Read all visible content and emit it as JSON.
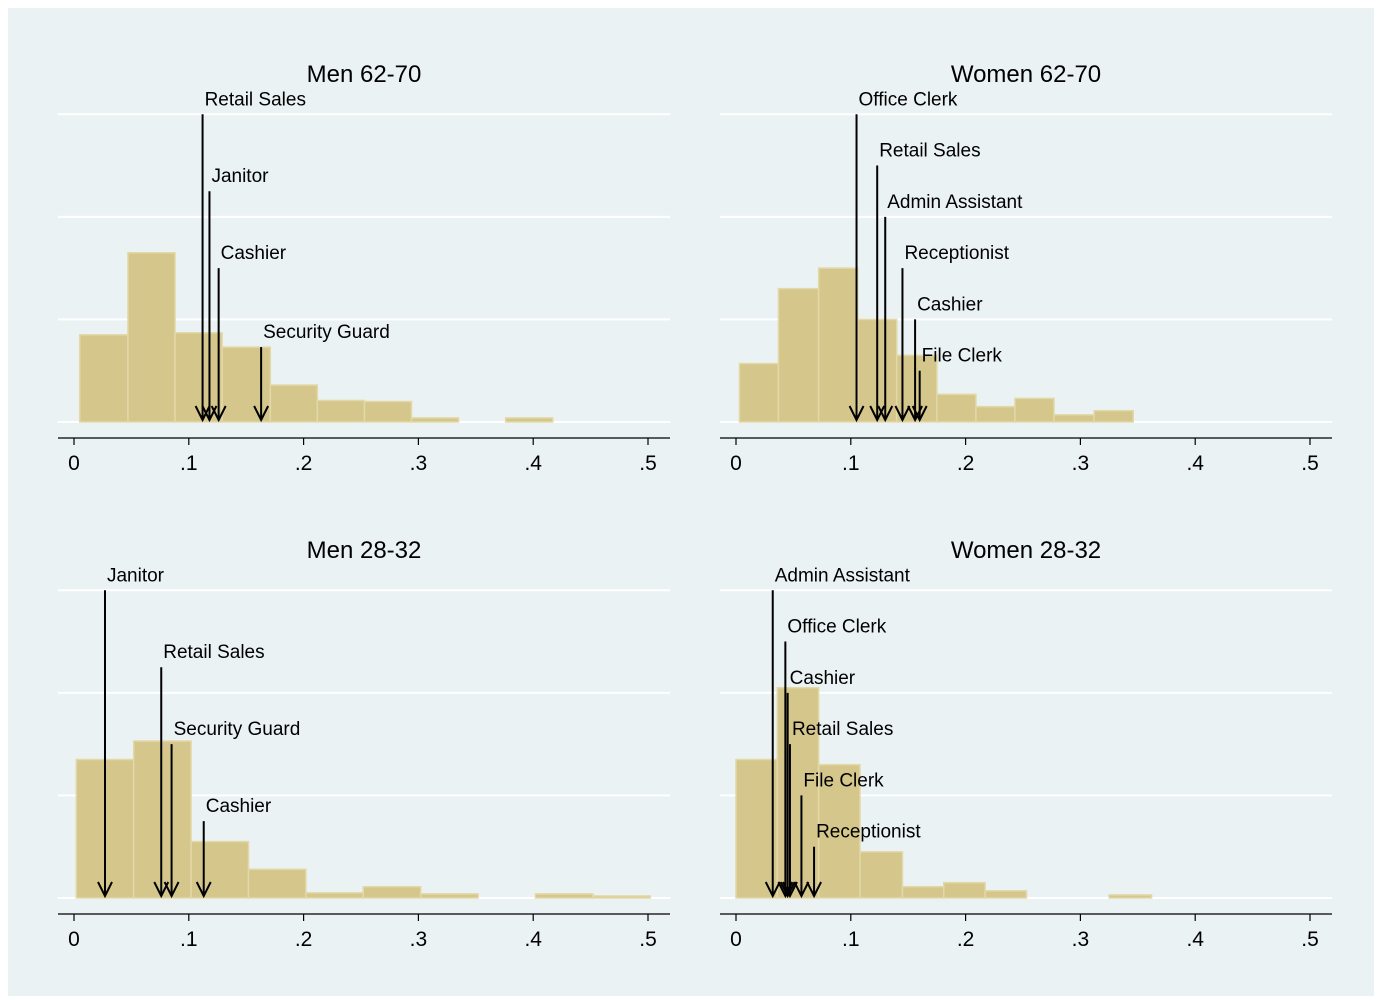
{
  "chart_data": [
    {
      "type": "bar",
      "title": "Men 62-70",
      "xlim": [
        0,
        0.5
      ],
      "ylim": [
        0,
        0.31
      ],
      "xticks": [
        {
          "value": 0,
          "label": "0"
        },
        {
          "value": 0.1,
          "label": ".1"
        },
        {
          "value": 0.2,
          "label": ".2"
        },
        {
          "value": 0.3,
          "label": ".3"
        },
        {
          "value": 0.4,
          "label": ".4"
        },
        {
          "value": 0.5,
          "label": ".5"
        }
      ],
      "grid_y": [
        0,
        0.1,
        0.2,
        0.3
      ],
      "bins": [
        {
          "x0": 0.005,
          "x1": 0.047,
          "value": 0.085
        },
        {
          "x0": 0.047,
          "x1": 0.088,
          "value": 0.165
        },
        {
          "x0": 0.088,
          "x1": 0.129,
          "value": 0.087
        },
        {
          "x0": 0.129,
          "x1": 0.171,
          "value": 0.073
        },
        {
          "x0": 0.171,
          "x1": 0.212,
          "value": 0.036
        },
        {
          "x0": 0.212,
          "x1": 0.253,
          "value": 0.021
        },
        {
          "x0": 0.253,
          "x1": 0.294,
          "value": 0.02
        },
        {
          "x0": 0.294,
          "x1": 0.335,
          "value": 0.004
        },
        {
          "x0": 0.376,
          "x1": 0.417,
          "value": 0.004
        }
      ],
      "annotations": [
        {
          "label": "Retail Sales",
          "x": 0.112,
          "label_y": 0.3
        },
        {
          "label": "Janitor",
          "x": 0.118,
          "label_y": 0.225
        },
        {
          "label": "Cashier",
          "x": 0.126,
          "label_y": 0.15
        },
        {
          "label": "Security Guard",
          "x": 0.163,
          "label_y": 0.073
        }
      ]
    },
    {
      "type": "bar",
      "title": "Women 62-70",
      "xlim": [
        0,
        0.5
      ],
      "ylim": [
        0,
        0.31
      ],
      "xticks": [
        {
          "value": 0,
          "label": "0"
        },
        {
          "value": 0.1,
          "label": ".1"
        },
        {
          "value": 0.2,
          "label": ".2"
        },
        {
          "value": 0.3,
          "label": ".3"
        },
        {
          "value": 0.4,
          "label": ".4"
        },
        {
          "value": 0.5,
          "label": ".5"
        }
      ],
      "grid_y": [
        0,
        0.1,
        0.2,
        0.3
      ],
      "bins": [
        {
          "x0": 0.003,
          "x1": 0.037,
          "value": 0.057
        },
        {
          "x0": 0.037,
          "x1": 0.072,
          "value": 0.13
        },
        {
          "x0": 0.072,
          "x1": 0.106,
          "value": 0.15
        },
        {
          "x0": 0.106,
          "x1": 0.14,
          "value": 0.1
        },
        {
          "x0": 0.14,
          "x1": 0.175,
          "value": 0.065
        },
        {
          "x0": 0.175,
          "x1": 0.209,
          "value": 0.027
        },
        {
          "x0": 0.209,
          "x1": 0.243,
          "value": 0.015
        },
        {
          "x0": 0.243,
          "x1": 0.277,
          "value": 0.023
        },
        {
          "x0": 0.277,
          "x1": 0.312,
          "value": 0.007
        },
        {
          "x0": 0.312,
          "x1": 0.346,
          "value": 0.011
        }
      ],
      "annotations": [
        {
          "label": "Office Clerk",
          "x": 0.105,
          "label_y": 0.3
        },
        {
          "label": "Retail Sales",
          "x": 0.123,
          "label_y": 0.25
        },
        {
          "label": "Admin Assistant",
          "x": 0.13,
          "label_y": 0.2
        },
        {
          "label": "Receptionist",
          "x": 0.145,
          "label_y": 0.15
        },
        {
          "label": "Cashier",
          "x": 0.156,
          "label_y": 0.1
        },
        {
          "label": "File Clerk",
          "x": 0.16,
          "label_y": 0.05
        }
      ]
    },
    {
      "type": "bar",
      "title": "Men 28-32",
      "xlim": [
        0,
        0.5
      ],
      "ylim": [
        0,
        0.31
      ],
      "xticks": [
        {
          "value": 0,
          "label": "0"
        },
        {
          "value": 0.1,
          "label": ".1"
        },
        {
          "value": 0.2,
          "label": ".2"
        },
        {
          "value": 0.3,
          "label": ".3"
        },
        {
          "value": 0.4,
          "label": ".4"
        },
        {
          "value": 0.5,
          "label": ".5"
        }
      ],
      "grid_y": [
        0,
        0.1,
        0.2,
        0.3
      ],
      "bins": [
        {
          "x0": 0.002,
          "x1": 0.052,
          "value": 0.135
        },
        {
          "x0": 0.052,
          "x1": 0.102,
          "value": 0.153
        },
        {
          "x0": 0.102,
          "x1": 0.152,
          "value": 0.055
        },
        {
          "x0": 0.152,
          "x1": 0.202,
          "value": 0.028
        },
        {
          "x0": 0.202,
          "x1": 0.252,
          "value": 0.005
        },
        {
          "x0": 0.252,
          "x1": 0.302,
          "value": 0.011
        },
        {
          "x0": 0.302,
          "x1": 0.352,
          "value": 0.004
        },
        {
          "x0": 0.402,
          "x1": 0.452,
          "value": 0.004
        },
        {
          "x0": 0.452,
          "x1": 0.502,
          "value": 0.002
        }
      ],
      "annotations": [
        {
          "label": "Janitor",
          "x": 0.027,
          "label_y": 0.3
        },
        {
          "label": "Retail Sales",
          "x": 0.076,
          "label_y": 0.225
        },
        {
          "label": "Security Guard",
          "x": 0.085,
          "label_y": 0.15
        },
        {
          "label": "Cashier",
          "x": 0.113,
          "label_y": 0.075
        }
      ]
    },
    {
      "type": "bar",
      "title": "Women 28-32",
      "xlim": [
        0,
        0.5
      ],
      "ylim": [
        0,
        0.31
      ],
      "xticks": [
        {
          "value": 0,
          "label": "0"
        },
        {
          "value": 0.1,
          "label": ".1"
        },
        {
          "value": 0.2,
          "label": ".2"
        },
        {
          "value": 0.3,
          "label": ".3"
        },
        {
          "value": 0.4,
          "label": ".4"
        },
        {
          "value": 0.5,
          "label": ".5"
        }
      ],
      "grid_y": [
        0,
        0.1,
        0.2,
        0.3
      ],
      "bins": [
        {
          "x0": 0.0,
          "x1": 0.036,
          "value": 0.135
        },
        {
          "x0": 0.036,
          "x1": 0.072,
          "value": 0.205
        },
        {
          "x0": 0.072,
          "x1": 0.108,
          "value": 0.13
        },
        {
          "x0": 0.108,
          "x1": 0.145,
          "value": 0.045
        },
        {
          "x0": 0.145,
          "x1": 0.181,
          "value": 0.011
        },
        {
          "x0": 0.181,
          "x1": 0.217,
          "value": 0.015
        },
        {
          "x0": 0.217,
          "x1": 0.253,
          "value": 0.007
        },
        {
          "x0": 0.325,
          "x1": 0.362,
          "value": 0.003
        }
      ],
      "annotations": [
        {
          "label": "Admin Assistant",
          "x": 0.032,
          "label_y": 0.3
        },
        {
          "label": "Office Clerk",
          "x": 0.043,
          "label_y": 0.25
        },
        {
          "label": "Cashier",
          "x": 0.045,
          "label_y": 0.2
        },
        {
          "label": "Retail Sales",
          "x": 0.047,
          "label_y": 0.15
        },
        {
          "label": "File Clerk",
          "x": 0.057,
          "label_y": 0.1
        },
        {
          "label": "Receptionist",
          "x": 0.068,
          "label_y": 0.05
        }
      ]
    }
  ],
  "colors": {
    "background": "#eaf2f3",
    "plot_area": "#eaf2f3",
    "bar_fill": "#d5c78c",
    "bar_edge": "#e2d8a8",
    "grid": "#ffffff",
    "axis": "#000000"
  }
}
